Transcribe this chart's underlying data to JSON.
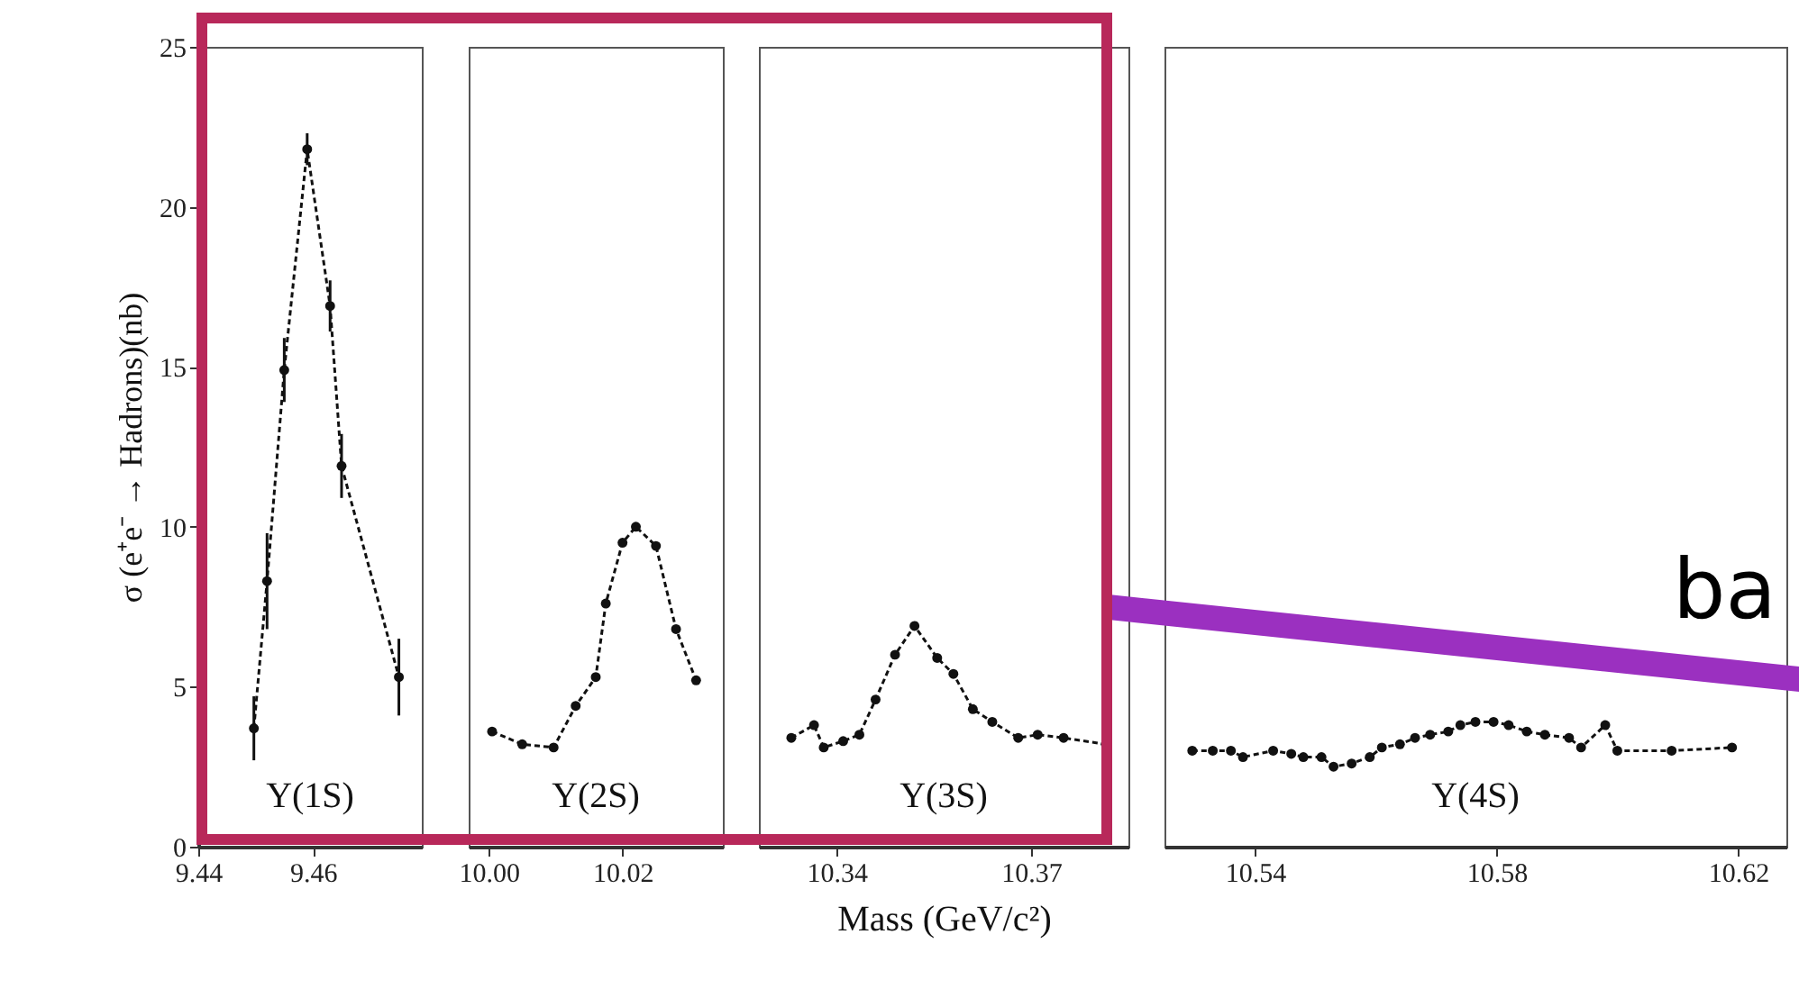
{
  "chart_data": [
    {
      "type": "line",
      "ylabel": "σ (e⁺e⁻ → Hadrons)(nb)",
      "marker": "circle",
      "line_style": "dashed",
      "xlim": [
        9.44,
        9.479
      ],
      "xticks": [
        9.44,
        9.46
      ],
      "ylim": [
        0,
        25
      ],
      "yticks": [
        0,
        5,
        10,
        15,
        20,
        25
      ],
      "series": [
        {
          "color": "#111111",
          "x": [
            9.4497,
            9.452,
            9.455,
            9.459,
            9.463,
            9.465,
            9.475
          ],
          "values": [
            3.7,
            8.3,
            14.9,
            21.8,
            16.9,
            11.9,
            5.3
          ],
          "errors": [
            1.0,
            1.5,
            1.0,
            0.5,
            0.8,
            1.0,
            1.2
          ]
        }
      ],
      "annotations": [
        "Υ(1S)"
      ]
    },
    {
      "type": "line",
      "marker": "circle",
      "line_style": "dashed",
      "tick_labels": "x",
      "xlim": [
        9.997,
        10.035
      ],
      "xticks": [
        {
          "value": 10.0,
          "label": "10.00"
        },
        10.02
      ],
      "ylim": [
        0,
        25
      ],
      "series": [
        {
          "color": "#111111",
          "x": [
            10.0005,
            10.005,
            10.0097,
            10.013,
            10.016,
            10.0175,
            10.02,
            10.022,
            10.025,
            10.028,
            10.031
          ],
          "values": [
            3.6,
            3.2,
            3.1,
            4.4,
            5.3,
            7.6,
            9.5,
            10.0,
            9.4,
            6.8,
            5.2
          ]
        }
      ],
      "annotations": [
        "Υ(2S)"
      ]
    },
    {
      "type": "line",
      "xlabel": "Mass (GeV/c²)",
      "marker": "circle",
      "line_style": "dashed",
      "tick_labels": "x",
      "xlim": [
        10.328,
        10.385
      ],
      "xticks": [
        10.34,
        10.37
      ],
      "ylim": [
        0,
        25
      ],
      "series": [
        {
          "color": "#111111",
          "x": [
            10.333,
            10.3365,
            10.338,
            10.341,
            10.3435,
            10.346,
            10.349,
            10.352,
            10.3555,
            10.358,
            10.361,
            10.364,
            10.368,
            10.371,
            10.375,
            10.3815
          ],
          "values": [
            3.4,
            3.8,
            3.1,
            3.3,
            3.5,
            4.6,
            6.0,
            6.9,
            5.9,
            5.4,
            4.3,
            3.9,
            3.4,
            3.5,
            3.4,
            3.2
          ]
        }
      ],
      "annotations": [
        "Υ(3S)"
      ]
    },
    {
      "type": "line",
      "marker": "circle",
      "line_style": "dashed",
      "tick_labels": "x",
      "xlim": [
        10.525,
        10.628
      ],
      "xticks": [
        10.54,
        10.58,
        10.62
      ],
      "ylim": [
        0,
        25
      ],
      "series": [
        {
          "color": "#111111",
          "x": [
            10.5296,
            10.533,
            10.536,
            10.538,
            10.543,
            10.546,
            10.548,
            10.551,
            10.553,
            10.556,
            10.559,
            10.561,
            10.564,
            10.5665,
            10.569,
            10.572,
            10.574,
            10.5765,
            10.5795,
            10.582,
            10.585,
            10.588,
            10.592,
            10.594,
            10.598,
            10.6,
            10.609,
            10.619
          ],
          "values": [
            3.0,
            3.0,
            3.0,
            2.8,
            3.0,
            2.9,
            2.8,
            2.8,
            2.5,
            2.6,
            2.8,
            3.1,
            3.2,
            3.4,
            3.5,
            3.6,
            3.8,
            3.9,
            3.9,
            3.8,
            3.6,
            3.5,
            3.4,
            3.1,
            3.8,
            3.0,
            3.0,
            3.1
          ]
        }
      ],
      "annotations": [
        "Υ(4S)"
      ]
    },
    {
      "type": "other",
      "annotations": [
        "ba"
      ]
    }
  ]
}
